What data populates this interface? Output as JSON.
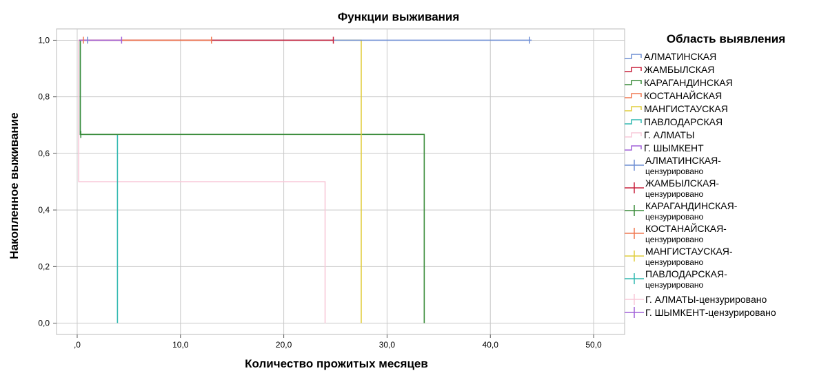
{
  "chart_data": {
    "type": "line",
    "title": "Функции выживания",
    "xlabel": "Количество прожитых месяцев",
    "ylabel": "Накопленное выживание",
    "xlim": [
      -2,
      53
    ],
    "ylim": [
      -0.04,
      1.04
    ],
    "xticks": [
      0,
      10,
      20,
      30,
      40,
      50
    ],
    "xtick_labels": [
      ",0",
      "10,0",
      "20,0",
      "30,0",
      "40,0",
      "50,0"
    ],
    "yticks": [
      0,
      0.2,
      0.4,
      0.6,
      0.8,
      1.0
    ],
    "ytick_labels": [
      "0,0",
      "0,2",
      "0,4",
      "0,6",
      "0,8",
      "1,0"
    ],
    "grid": true,
    "legend_title": "Область выявления",
    "legend_position": "right",
    "series": [
      {
        "name": "АЛМАТИНСКАЯ",
        "color": "#6f8fd4",
        "steps": [
          [
            0.2,
            1.0
          ],
          [
            44,
            1.0
          ]
        ],
        "censored": [
          [
            1.0,
            1.0
          ],
          [
            43.8,
            1.0
          ]
        ],
        "censor_label": "АЛМАТИНСКАЯ-",
        "censor_sub": "цензурировано"
      },
      {
        "name": "ЖАМБЫЛСКАЯ",
        "color": "#c8203c",
        "steps": [
          [
            0.2,
            1.0
          ],
          [
            24.8,
            1.0
          ]
        ],
        "censored": [
          [
            24.8,
            1.0
          ]
        ],
        "censor_label": "ЖАМБЫЛСКАЯ-",
        "censor_sub": "цензурировано"
      },
      {
        "name": "КАРАГАНДИНСКАЯ",
        "color": "#3a8c3a",
        "steps": [
          [
            0.2,
            1.0
          ],
          [
            0.3,
            0.667
          ],
          [
            33.6,
            0.0
          ]
        ],
        "censored": [
          [
            0.35,
            0.667
          ]
        ],
        "censor_label": "КАРАГАНДИНСКАЯ-",
        "censor_sub": "цензурировано"
      },
      {
        "name": "КОСТАНАЙСКАЯ",
        "color": "#f07850",
        "steps": [
          [
            0.2,
            1.0
          ],
          [
            13.0,
            1.0
          ]
        ],
        "censored": [
          [
            0.6,
            1.0
          ],
          [
            13.0,
            1.0
          ]
        ],
        "censor_label": "КОСТАНАЙСКАЯ-",
        "censor_sub": "цензурировано"
      },
      {
        "name": "МАНГИСТАУСКАЯ",
        "color": "#e0cd3c",
        "steps": [
          [
            0.2,
            1.0
          ],
          [
            27.5,
            0.0
          ]
        ],
        "censored": [],
        "censor_label": "МАНГИСТАУСКАЯ-",
        "censor_sub": "цензурировано"
      },
      {
        "name": "ПАВЛОДАРСКАЯ",
        "color": "#30b8b0",
        "steps": [
          [
            0.2,
            1.0
          ],
          [
            0.3,
            0.667
          ],
          [
            3.9,
            0.0
          ]
        ],
        "censored": [
          [
            0.35,
            0.667
          ]
        ],
        "censor_label": "ПАВЛОДАРСКАЯ-",
        "censor_sub": "цензурировано"
      },
      {
        "name": "Г. АЛМАТЫ",
        "color": "#f8c8d8",
        "steps": [
          [
            0.1,
            1.0
          ],
          [
            0.15,
            0.5
          ],
          [
            24.0,
            0.0
          ]
        ],
        "censored": [],
        "censor_label": "Г. АЛМАТЫ-цензурировано",
        "censor_sub": ""
      },
      {
        "name": "Г. ШЫМКЕНТ",
        "color": "#a060d8",
        "steps": [
          [
            0.2,
            1.0
          ],
          [
            4.3,
            1.0
          ]
        ],
        "censored": [
          [
            4.3,
            1.0
          ]
        ],
        "censor_label": "Г. ШЫМКЕНТ-цензурировано",
        "censor_sub": ""
      }
    ]
  }
}
